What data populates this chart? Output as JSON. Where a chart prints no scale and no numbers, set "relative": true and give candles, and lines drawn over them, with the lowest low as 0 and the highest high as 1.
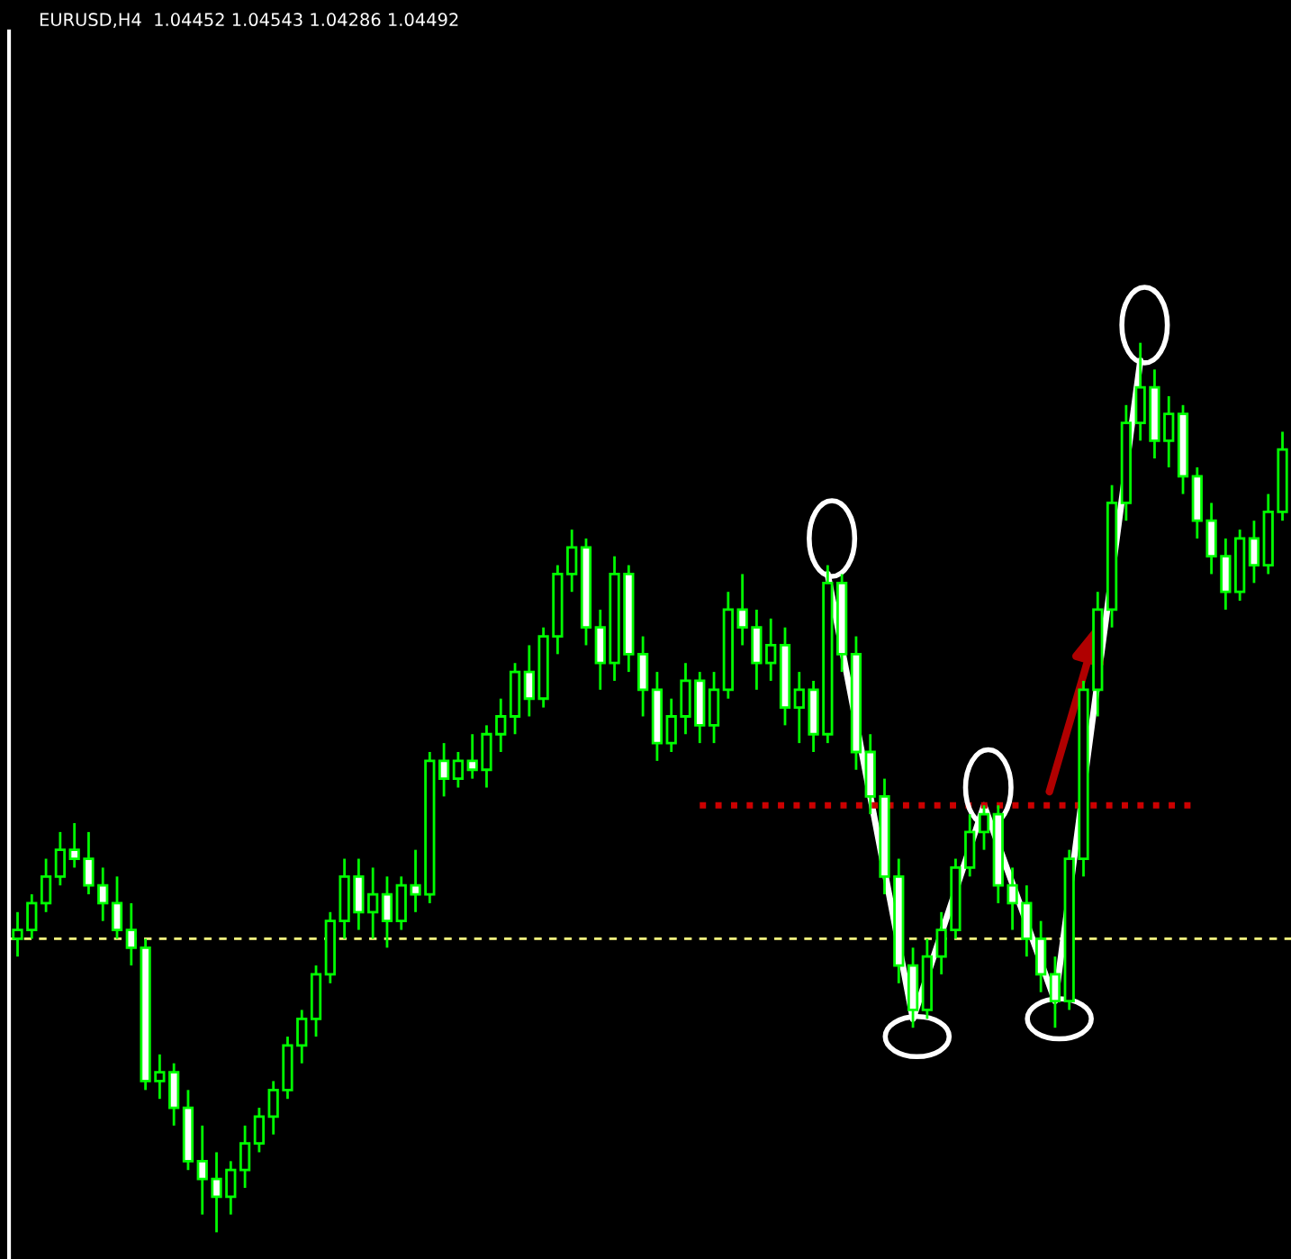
{
  "chart_data": {
    "type": "candlestick",
    "title": "EURUSD,H4  1.04452 1.04543 1.04286 1.04492",
    "relative": true,
    "color": "#00ff00",
    "categories": [
      null,
      null,
      null,
      null,
      null,
      null,
      null,
      null,
      null,
      null,
      null,
      null,
      null,
      null,
      null,
      null,
      null,
      null,
      null,
      null,
      null,
      null,
      null,
      null,
      null,
      null,
      null,
      null,
      null,
      null,
      null,
      null,
      null,
      null,
      null,
      null,
      null,
      null,
      null,
      null,
      null,
      null,
      null,
      null,
      null,
      null,
      null,
      null,
      null,
      null,
      null,
      null,
      null,
      null,
      null,
      null,
      null,
      null,
      null,
      null,
      null,
      null,
      null,
      null,
      null,
      null,
      null,
      null,
      null,
      null,
      null,
      null,
      null,
      null,
      null,
      null,
      null,
      null,
      null,
      null,
      null,
      null,
      null,
      null,
      null,
      null,
      null,
      null,
      null,
      null
    ],
    "ohlc": [
      [
        0.33,
        0.36,
        0.31,
        0.34
      ],
      [
        0.34,
        0.38,
        0.33,
        0.37
      ],
      [
        0.37,
        0.42,
        0.36,
        0.4
      ],
      [
        0.4,
        0.45,
        0.39,
        0.43
      ],
      [
        0.43,
        0.46,
        0.41,
        0.42
      ],
      [
        0.42,
        0.45,
        0.38,
        0.39
      ],
      [
        0.39,
        0.41,
        0.35,
        0.37
      ],
      [
        0.37,
        0.4,
        0.33,
        0.34
      ],
      [
        0.34,
        0.37,
        0.3,
        0.32
      ],
      [
        0.32,
        0.33,
        0.16,
        0.17
      ],
      [
        0.17,
        0.2,
        0.15,
        0.18
      ],
      [
        0.18,
        0.19,
        0.12,
        0.14
      ],
      [
        0.14,
        0.16,
        0.07,
        0.08
      ],
      [
        0.08,
        0.12,
        0.02,
        0.06
      ],
      [
        0.06,
        0.09,
        0.0,
        0.04
      ],
      [
        0.04,
        0.08,
        0.02,
        0.07
      ],
      [
        0.07,
        0.12,
        0.05,
        0.1
      ],
      [
        0.1,
        0.14,
        0.09,
        0.13
      ],
      [
        0.13,
        0.17,
        0.11,
        0.16
      ],
      [
        0.16,
        0.22,
        0.15,
        0.21
      ],
      [
        0.21,
        0.25,
        0.19,
        0.24
      ],
      [
        0.24,
        0.3,
        0.22,
        0.29
      ],
      [
        0.29,
        0.36,
        0.28,
        0.35
      ],
      [
        0.35,
        0.42,
        0.33,
        0.4
      ],
      [
        0.4,
        0.42,
        0.34,
        0.36
      ],
      [
        0.36,
        0.41,
        0.33,
        0.38
      ],
      [
        0.38,
        0.4,
        0.32,
        0.35
      ],
      [
        0.35,
        0.4,
        0.34,
        0.39
      ],
      [
        0.39,
        0.43,
        0.36,
        0.38
      ],
      [
        0.38,
        0.54,
        0.37,
        0.53
      ],
      [
        0.53,
        0.55,
        0.49,
        0.51
      ],
      [
        0.51,
        0.54,
        0.5,
        0.53
      ],
      [
        0.53,
        0.56,
        0.51,
        0.52
      ],
      [
        0.52,
        0.57,
        0.5,
        0.56
      ],
      [
        0.56,
        0.6,
        0.54,
        0.58
      ],
      [
        0.58,
        0.64,
        0.56,
        0.63
      ],
      [
        0.63,
        0.66,
        0.58,
        0.6
      ],
      [
        0.6,
        0.68,
        0.59,
        0.67
      ],
      [
        0.67,
        0.75,
        0.65,
        0.74
      ],
      [
        0.74,
        0.79,
        0.72,
        0.77
      ],
      [
        0.77,
        0.78,
        0.66,
        0.68
      ],
      [
        0.68,
        0.7,
        0.61,
        0.64
      ],
      [
        0.64,
        0.76,
        0.62,
        0.74
      ],
      [
        0.74,
        0.75,
        0.63,
        0.65
      ],
      [
        0.65,
        0.67,
        0.58,
        0.61
      ],
      [
        0.61,
        0.63,
        0.53,
        0.55
      ],
      [
        0.55,
        0.6,
        0.54,
        0.58
      ],
      [
        0.58,
        0.64,
        0.56,
        0.62
      ],
      [
        0.62,
        0.63,
        0.55,
        0.57
      ],
      [
        0.57,
        0.63,
        0.55,
        0.61
      ],
      [
        0.61,
        0.72,
        0.6,
        0.7
      ],
      [
        0.7,
        0.74,
        0.66,
        0.68
      ],
      [
        0.68,
        0.7,
        0.61,
        0.64
      ],
      [
        0.64,
        0.69,
        0.62,
        0.66
      ],
      [
        0.66,
        0.68,
        0.57,
        0.59
      ],
      [
        0.59,
        0.63,
        0.55,
        0.61
      ],
      [
        0.61,
        0.62,
        0.54,
        0.56
      ],
      [
        0.56,
        0.75,
        0.55,
        0.73
      ],
      [
        0.73,
        0.74,
        0.63,
        0.65
      ],
      [
        0.65,
        0.67,
        0.52,
        0.54
      ],
      [
        0.54,
        0.56,
        0.47,
        0.49
      ],
      [
        0.49,
        0.51,
        0.38,
        0.4
      ],
      [
        0.4,
        0.42,
        0.28,
        0.3
      ],
      [
        0.3,
        0.32,
        0.23,
        0.25
      ],
      [
        0.25,
        0.33,
        0.24,
        0.31
      ],
      [
        0.31,
        0.36,
        0.29,
        0.34
      ],
      [
        0.34,
        0.42,
        0.33,
        0.41
      ],
      [
        0.41,
        0.47,
        0.4,
        0.45
      ],
      [
        0.45,
        0.48,
        0.43,
        0.47
      ],
      [
        0.47,
        0.48,
        0.37,
        0.39
      ],
      [
        0.39,
        0.41,
        0.34,
        0.37
      ],
      [
        0.37,
        0.39,
        0.31,
        0.33
      ],
      [
        0.33,
        0.35,
        0.27,
        0.29
      ],
      [
        0.29,
        0.31,
        0.23,
        0.26
      ],
      [
        0.26,
        0.43,
        0.25,
        0.42
      ],
      [
        0.42,
        0.62,
        0.4,
        0.61
      ],
      [
        0.61,
        0.72,
        0.58,
        0.7
      ],
      [
        0.7,
        0.84,
        0.68,
        0.82
      ],
      [
        0.82,
        0.93,
        0.8,
        0.91
      ],
      [
        0.91,
        1.0,
        0.89,
        0.95
      ],
      [
        0.95,
        0.97,
        0.87,
        0.89
      ],
      [
        0.89,
        0.94,
        0.86,
        0.92
      ],
      [
        0.92,
        0.93,
        0.83,
        0.85
      ],
      [
        0.85,
        0.86,
        0.78,
        0.8
      ],
      [
        0.8,
        0.82,
        0.74,
        0.76
      ],
      [
        0.76,
        0.78,
        0.7,
        0.72
      ],
      [
        0.72,
        0.79,
        0.71,
        0.78
      ],
      [
        0.78,
        0.8,
        0.73,
        0.75
      ],
      [
        0.75,
        0.83,
        0.74,
        0.81
      ],
      [
        0.81,
        0.9,
        0.8,
        0.88
      ]
    ],
    "series": [
      {
        "type": "line",
        "color": "#ffffff",
        "values": [
          null,
          null,
          null,
          null,
          null,
          null,
          null,
          null,
          null,
          null,
          null,
          null,
          null,
          null,
          null,
          null,
          null,
          null,
          null,
          null,
          null,
          null,
          null,
          null,
          null,
          null,
          null,
          null,
          null,
          null,
          null,
          null,
          null,
          null,
          null,
          null,
          null,
          null,
          null,
          null,
          null,
          null,
          null,
          null,
          null,
          null,
          null,
          null,
          null,
          null,
          null,
          null,
          null,
          null,
          null,
          null,
          null,
          0.74,
          null,
          null,
          null,
          null,
          null,
          0.24,
          null,
          null,
          null,
          null,
          0.48,
          null,
          null,
          null,
          null,
          0.26,
          null,
          null,
          null,
          null,
          null,
          0.98,
          null,
          null,
          null,
          null,
          null,
          null,
          null,
          null,
          null,
          null
        ]
      },
      {
        "type": "line",
        "color": "#cc0000",
        "line_style": "dotted",
        "values": [
          null,
          null,
          null,
          null,
          null,
          null,
          null,
          null,
          null,
          null,
          null,
          null,
          null,
          null,
          null,
          null,
          null,
          null,
          null,
          null,
          null,
          null,
          null,
          null,
          null,
          null,
          null,
          null,
          null,
          null,
          null,
          null,
          null,
          null,
          null,
          null,
          null,
          null,
          null,
          null,
          null,
          null,
          null,
          null,
          null,
          null,
          null,
          null,
          0.48,
          null,
          null,
          null,
          null,
          null,
          null,
          null,
          null,
          null,
          null,
          null,
          null,
          null,
          null,
          null,
          null,
          null,
          null,
          null,
          null,
          null,
          null,
          null,
          null,
          null,
          null,
          null,
          null,
          null,
          null,
          null,
          null,
          null,
          null,
          0.48,
          null,
          null,
          null,
          null,
          null,
          null
        ]
      }
    ],
    "ref_lines": [
      {
        "axis": "y",
        "value": 0.33,
        "color": "#ffff80",
        "line_style": "dashed"
      }
    ]
  }
}
